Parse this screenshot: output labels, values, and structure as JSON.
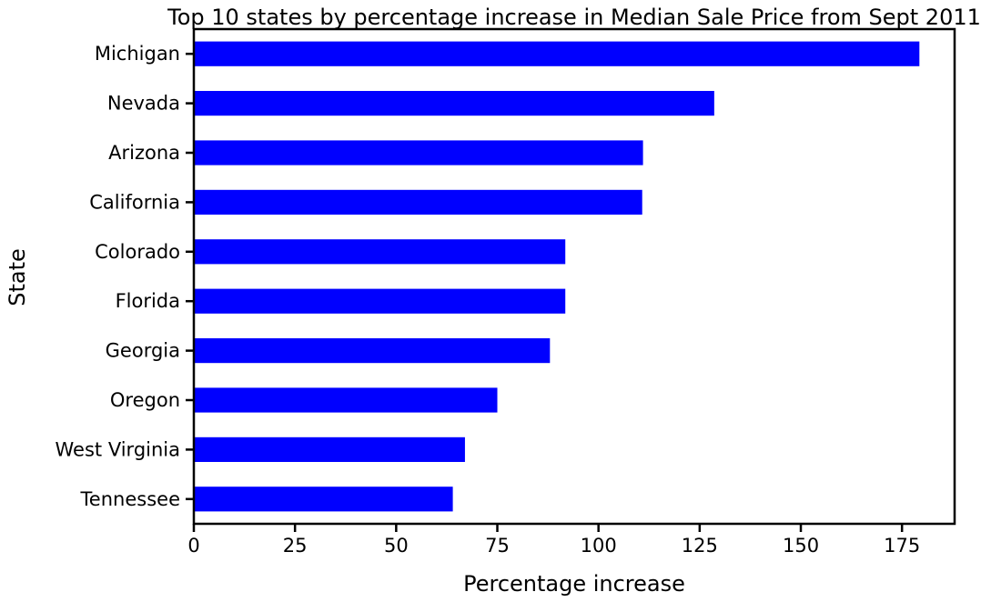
{
  "chart_data": {
    "type": "bar",
    "orientation": "horizontal",
    "title": "Top 10 states by percentage increase in Median Sale Price from Sept 2011",
    "xlabel": "Percentage increase",
    "ylabel": "State",
    "categories": [
      "Michigan",
      "Nevada",
      "Arizona",
      "California",
      "Colorado",
      "Florida",
      "Georgia",
      "Oregon",
      "West Virginia",
      "Tennessee"
    ],
    "values": [
      179.3,
      128.6,
      111.0,
      110.8,
      91.8,
      91.8,
      88.0,
      75.0,
      67.0,
      64.0
    ],
    "xlim": [
      0,
      188
    ],
    "xticks": [
      0,
      25,
      50,
      75,
      100,
      125,
      150,
      175
    ],
    "bar_color": "#0000ff",
    "grid": false,
    "legend": "none"
  }
}
